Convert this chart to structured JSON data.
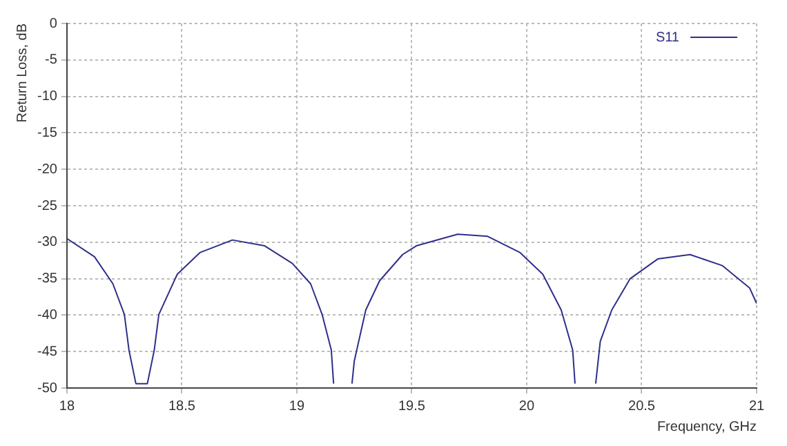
{
  "chart_data": {
    "type": "line",
    "xlabel": "Frequency, GHz",
    "ylabel": "Return Loss, dB",
    "xlim": [
      18,
      21
    ],
    "xticks": [
      18,
      18.5,
      19,
      19.5,
      20,
      20.5,
      21
    ],
    "ylim": [
      -50,
      0
    ],
    "yticks": [
      0,
      -5,
      -10,
      -15,
      -20,
      -25,
      -30,
      -35,
      -40,
      -45,
      -50
    ],
    "grid": true,
    "legend": "top right",
    "marker": "none",
    "line_style": "solid",
    "series": [
      {
        "name": "S11",
        "color": "#2e2e8a",
        "x": [
          18.0,
          18.12,
          18.2,
          18.25,
          18.27,
          18.3,
          18.35,
          18.38,
          18.4,
          18.48,
          18.58,
          18.72,
          18.86,
          18.98,
          19.06,
          19.11,
          19.15,
          19.16,
          19.2,
          19.24,
          19.25,
          19.3,
          19.36,
          19.46,
          19.52,
          19.7,
          19.83,
          19.97,
          20.07,
          20.15,
          20.2,
          20.21,
          20.25,
          20.3,
          20.32,
          20.37,
          20.45,
          20.57,
          20.71,
          20.85,
          20.97,
          21.0
        ],
        "values": [
          -29.5,
          -32,
          -35.7,
          -39.9,
          -44.8,
          -49.4,
          -49.4,
          -44.8,
          -39.9,
          -34.4,
          -31.4,
          -29.7,
          -30.5,
          -32.9,
          -35.7,
          -39.9,
          -44.8,
          -49.4,
          null,
          -49.4,
          -46.3,
          -39.3,
          -35.3,
          -31.7,
          -30.5,
          -28.9,
          -29.2,
          -31.4,
          -34.4,
          -39.3,
          -44.8,
          -49.4,
          null,
          -49.4,
          -43.6,
          -39.3,
          -35,
          -32.3,
          -31.7,
          -33.2,
          -36.3,
          -38.4
        ]
      }
    ]
  }
}
